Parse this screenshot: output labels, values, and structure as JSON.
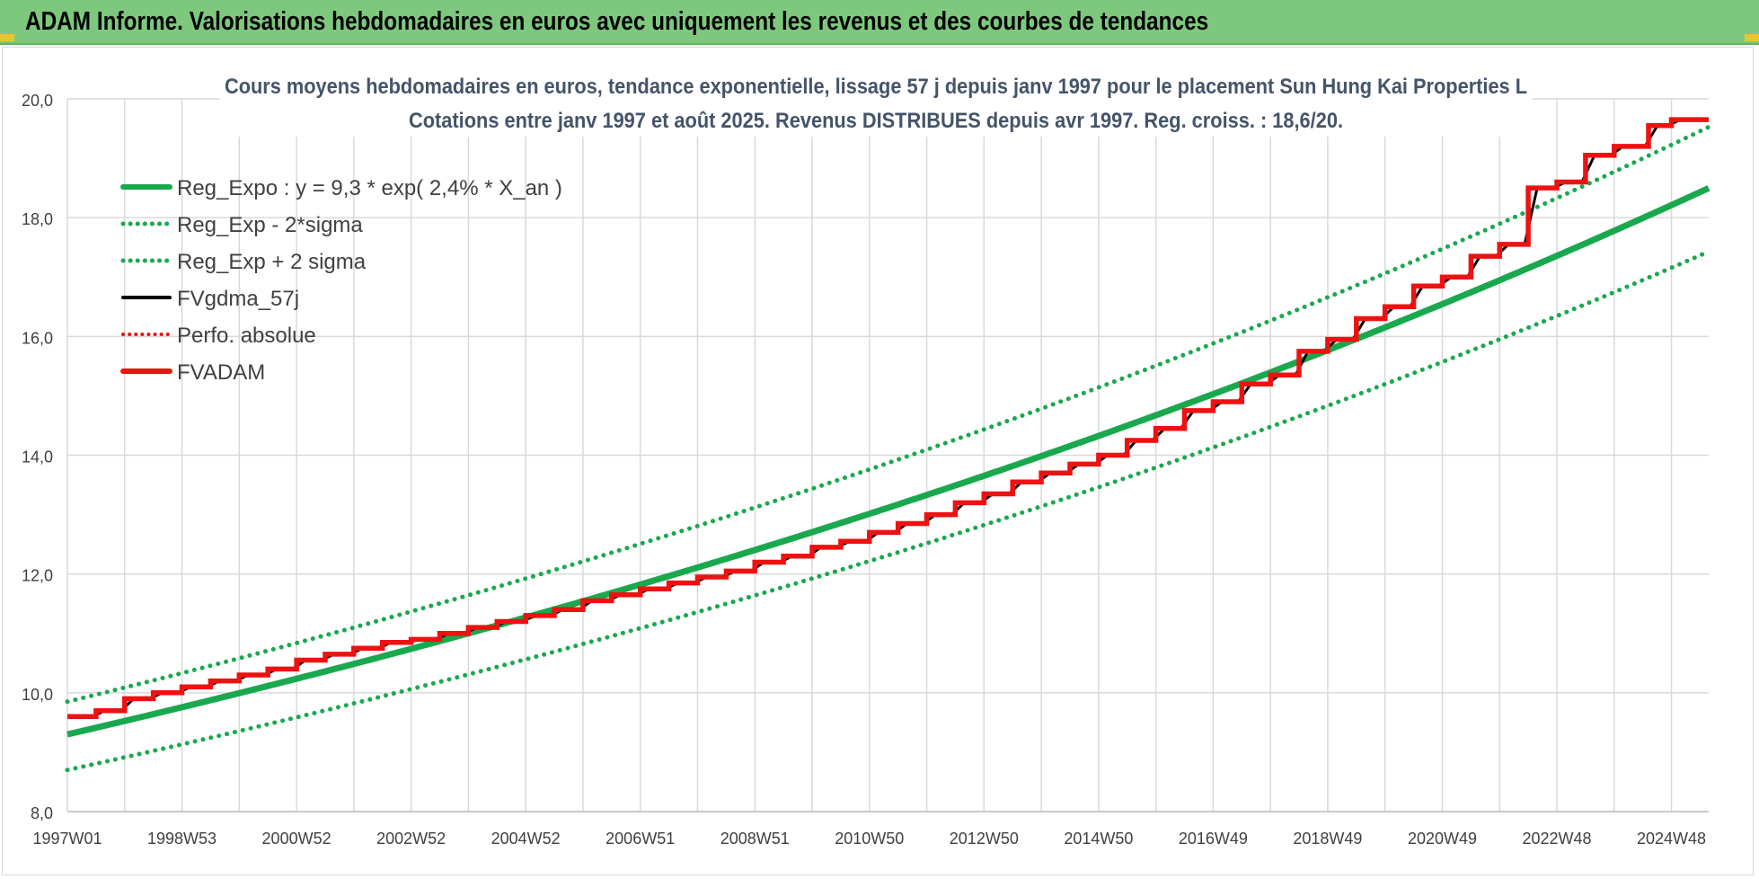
{
  "header": {
    "title": "ADAM Informe. Valorisations hebdomadaires en euros avec uniquement les revenus et des courbes de tendances"
  },
  "colors": {
    "header_bg": "#7dc87d",
    "regression": "#1aa84e",
    "fvadam": "#ee1111",
    "fvgdma": "#000000",
    "perfo": "#ee1111",
    "grid": "#d9d9d9",
    "text": "#404040"
  },
  "chart_data": {
    "type": "line",
    "title_line1": "Cours moyens hebdomadaires en euros, tendance exponentielle, lissage 57 j depuis janv 1997 pour le placement Sun Hung Kai Properties L",
    "title_line2": "Cotations entre janv 1997 et août 2025.  Revenus DISTRIBUES depuis avr 1997. Reg. croiss. : 18,6/20.",
    "x_tick_labels": [
      "1997W01",
      "1998W53",
      "2000W52",
      "2002W52",
      "2004W52",
      "2006W51",
      "2008W51",
      "2010W50",
      "2012W50",
      "2014W50",
      "2016W49",
      "2018W49",
      "2020W49",
      "2022W48",
      "2024W48"
    ],
    "x_range": [
      "1997W01",
      "2025W35"
    ],
    "y_ticks": [
      "8,0",
      "10,0",
      "12,0",
      "14,0",
      "16,0",
      "18,0",
      "20,0"
    ],
    "ylim": [
      8,
      20
    ],
    "grid": true,
    "legend_position": "top-left",
    "legend": [
      {
        "label": "Reg_Expo : y = 9,3 * exp( 2,4% *  X_an )",
        "style": "solid-green"
      },
      {
        "label": "Reg_Exp - 2*sigma",
        "style": "dotted-green"
      },
      {
        "label": "Reg_Exp + 2 sigma",
        "style": "dotted-green"
      },
      {
        "label": "FVgdma_57j",
        "style": "solid-black"
      },
      {
        "label": "Perfo. absolue",
        "style": "dotted-red"
      },
      {
        "label": "FVADAM",
        "style": "solid-red"
      }
    ],
    "regression": {
      "a": 9.3,
      "rate": 0.024
    },
    "lower_band": [
      {
        "year": 1997.0,
        "y": 8.7
      },
      {
        "year": 2025.7,
        "y": 17.45
      }
    ],
    "upper_band": [
      {
        "year": 1997.0,
        "y": 9.85
      },
      {
        "year": 2025.7,
        "y": 19.55
      }
    ],
    "fvadam_steps": [
      {
        "year": 1997.0,
        "y": 9.6
      },
      {
        "year": 1997.5,
        "y": 9.7
      },
      {
        "year": 1998.0,
        "y": 9.9
      },
      {
        "year": 1998.5,
        "y": 10.0
      },
      {
        "year": 1999.0,
        "y": 10.1
      },
      {
        "year": 1999.5,
        "y": 10.2
      },
      {
        "year": 2000.0,
        "y": 10.3
      },
      {
        "year": 2000.5,
        "y": 10.4
      },
      {
        "year": 2001.0,
        "y": 10.55
      },
      {
        "year": 2001.5,
        "y": 10.65
      },
      {
        "year": 2002.0,
        "y": 10.75
      },
      {
        "year": 2002.5,
        "y": 10.85
      },
      {
        "year": 2003.0,
        "y": 10.9
      },
      {
        "year": 2003.5,
        "y": 11.0
      },
      {
        "year": 2004.0,
        "y": 11.1
      },
      {
        "year": 2004.5,
        "y": 11.2
      },
      {
        "year": 2005.0,
        "y": 11.3
      },
      {
        "year": 2005.5,
        "y": 11.4
      },
      {
        "year": 2006.0,
        "y": 11.55
      },
      {
        "year": 2006.5,
        "y": 11.65
      },
      {
        "year": 2007.0,
        "y": 11.75
      },
      {
        "year": 2007.5,
        "y": 11.85
      },
      {
        "year": 2008.0,
        "y": 11.95
      },
      {
        "year": 2008.5,
        "y": 12.05
      },
      {
        "year": 2009.0,
        "y": 12.2
      },
      {
        "year": 2009.5,
        "y": 12.3
      },
      {
        "year": 2010.0,
        "y": 12.45
      },
      {
        "year": 2010.5,
        "y": 12.55
      },
      {
        "year": 2011.0,
        "y": 12.7
      },
      {
        "year": 2011.5,
        "y": 12.85
      },
      {
        "year": 2012.0,
        "y": 13.0
      },
      {
        "year": 2012.5,
        "y": 13.2
      },
      {
        "year": 2013.0,
        "y": 13.35
      },
      {
        "year": 2013.5,
        "y": 13.55
      },
      {
        "year": 2014.0,
        "y": 13.7
      },
      {
        "year": 2014.5,
        "y": 13.85
      },
      {
        "year": 2015.0,
        "y": 14.0
      },
      {
        "year": 2015.5,
        "y": 14.25
      },
      {
        "year": 2016.0,
        "y": 14.45
      },
      {
        "year": 2016.5,
        "y": 14.75
      },
      {
        "year": 2017.0,
        "y": 14.9
      },
      {
        "year": 2017.5,
        "y": 15.2
      },
      {
        "year": 2018.0,
        "y": 15.35
      },
      {
        "year": 2018.5,
        "y": 15.75
      },
      {
        "year": 2019.0,
        "y": 15.95
      },
      {
        "year": 2019.5,
        "y": 16.3
      },
      {
        "year": 2020.0,
        "y": 16.5
      },
      {
        "year": 2020.5,
        "y": 16.85
      },
      {
        "year": 2021.0,
        "y": 17.0
      },
      {
        "year": 2021.5,
        "y": 17.35
      },
      {
        "year": 2022.0,
        "y": 17.55
      },
      {
        "year": 2022.5,
        "y": 18.5
      },
      {
        "year": 2023.0,
        "y": 18.6
      },
      {
        "year": 2023.5,
        "y": 19.05
      },
      {
        "year": 2024.0,
        "y": 19.2
      },
      {
        "year": 2024.6,
        "y": 19.55
      },
      {
        "year": 2025.0,
        "y": 19.65
      }
    ],
    "x_end_year": 2025.65
  }
}
